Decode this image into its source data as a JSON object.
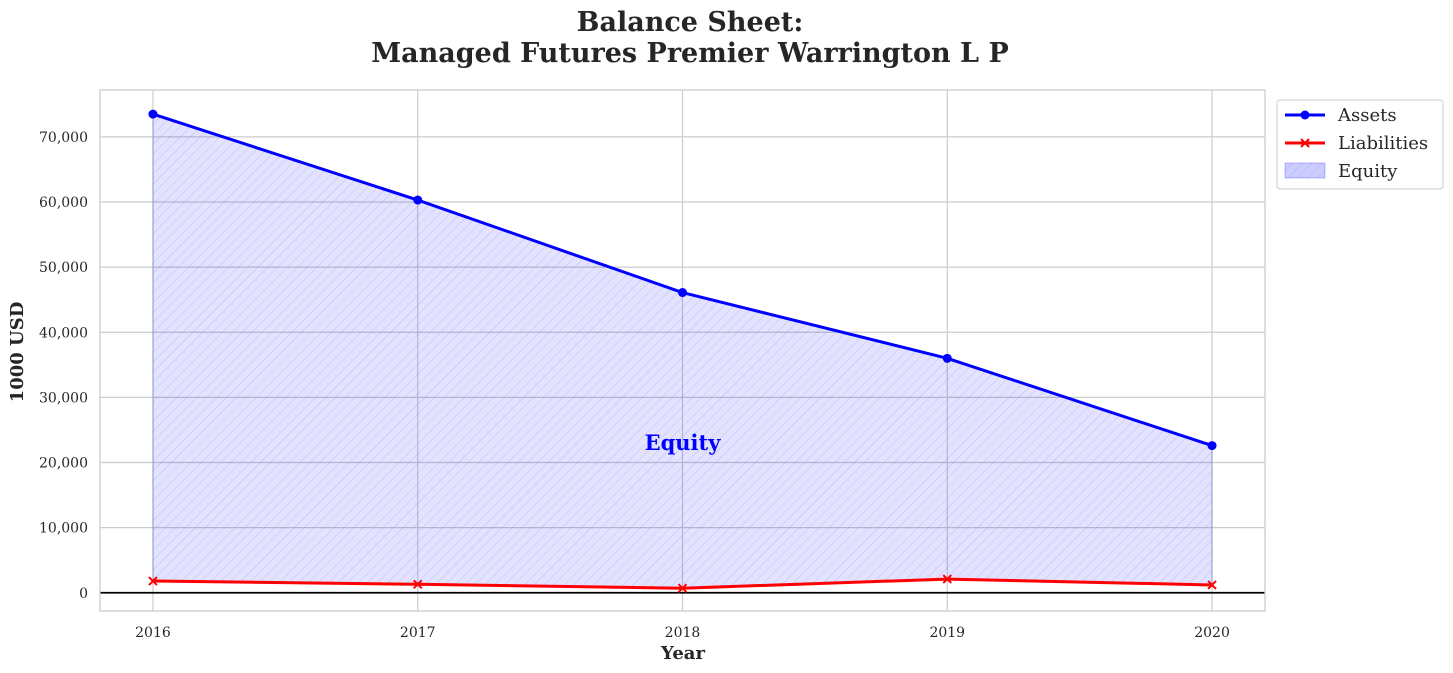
{
  "chart_data": {
    "type": "line",
    "title_lines": [
      "Balance Sheet:",
      "Managed Futures Premier Warrington L P"
    ],
    "xlabel": "Year",
    "ylabel": "1000 USD",
    "x": [
      2016,
      2017,
      2018,
      2019,
      2020
    ],
    "x_tick_labels": [
      "2016",
      "2017",
      "2018",
      "2019",
      "2020"
    ],
    "y_ticks": [
      0,
      10000,
      20000,
      30000,
      40000,
      50000,
      60000,
      70000
    ],
    "y_tick_labels": [
      "0",
      "10,000",
      "20,000",
      "30,000",
      "40,000",
      "50,000",
      "60,000",
      "70,000"
    ],
    "xlim": [
      2015.8,
      2020.2
    ],
    "ylim": [
      -2800,
      77200
    ],
    "grid": true,
    "legend_position": "outside-top-right",
    "series": [
      {
        "name": "Assets",
        "values": [
          73500,
          60300,
          46100,
          36000,
          22600
        ],
        "color": "#0000ff",
        "marker": "circle"
      },
      {
        "name": "Liabilities",
        "values": [
          1800,
          1300,
          700,
          2100,
          1200
        ],
        "color": "#ff0000",
        "marker": "x"
      }
    ],
    "fill": {
      "name": "Equity",
      "between": [
        "Liabilities",
        "Assets"
      ],
      "color": "#0000ff",
      "hatch": "////"
    },
    "annotation": {
      "text": "Equity",
      "x": 2018,
      "y": 23000,
      "color": "#0000ff"
    }
  }
}
